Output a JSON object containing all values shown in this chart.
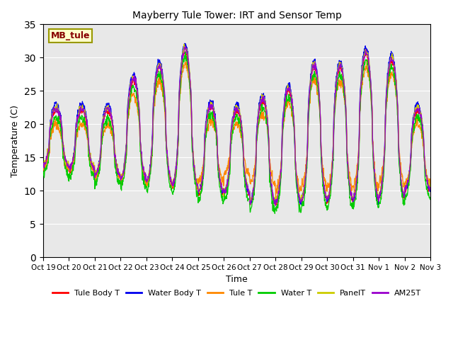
{
  "title": "Mayberry Tule Tower: IRT and Sensor Temp",
  "xlabel": "Time",
  "ylabel": "Temperature (C)",
  "ylim": [
    0,
    35
  ],
  "yticks": [
    0,
    5,
    10,
    15,
    20,
    25,
    30,
    35
  ],
  "bg_color": "#e8e8e8",
  "label_box_text": "MB_tule",
  "series_colors": {
    "Tule Body T": "#ff0000",
    "Water Body T": "#0000ee",
    "Tule T": "#ff8800",
    "Water T": "#00cc00",
    "PanelT": "#cccc00",
    "AM25T": "#9900cc"
  },
  "tick_labels": [
    "Oct 19",
    "Oct 20",
    "Oct 21",
    "Oct 22",
    "Oct 23",
    "Oct 24",
    "Oct 25",
    "Oct 26",
    "Oct 27",
    "Oct 28",
    "Oct 29",
    "Oct 30",
    "Oct 31",
    "Nov 1",
    "Nov 2",
    "Nov 3"
  ],
  "day_mins": [
    13.5,
    13.0,
    12.0,
    11.5,
    11.0,
    10.5,
    9.5,
    9.5,
    8.0,
    8.0,
    8.5,
    8.5,
    8.5,
    9.0,
    10.0,
    10.0
  ],
  "day_maxs": [
    22.0,
    22.0,
    22.0,
    26.5,
    28.5,
    31.0,
    22.5,
    22.0,
    23.5,
    25.0,
    28.5,
    28.5,
    30.5,
    29.5,
    22.0,
    20.0
  ],
  "tule_t_extra_low": [
    0,
    0,
    0,
    0,
    0,
    0,
    2,
    3,
    3,
    2,
    2,
    2,
    2,
    2,
    1,
    1
  ]
}
